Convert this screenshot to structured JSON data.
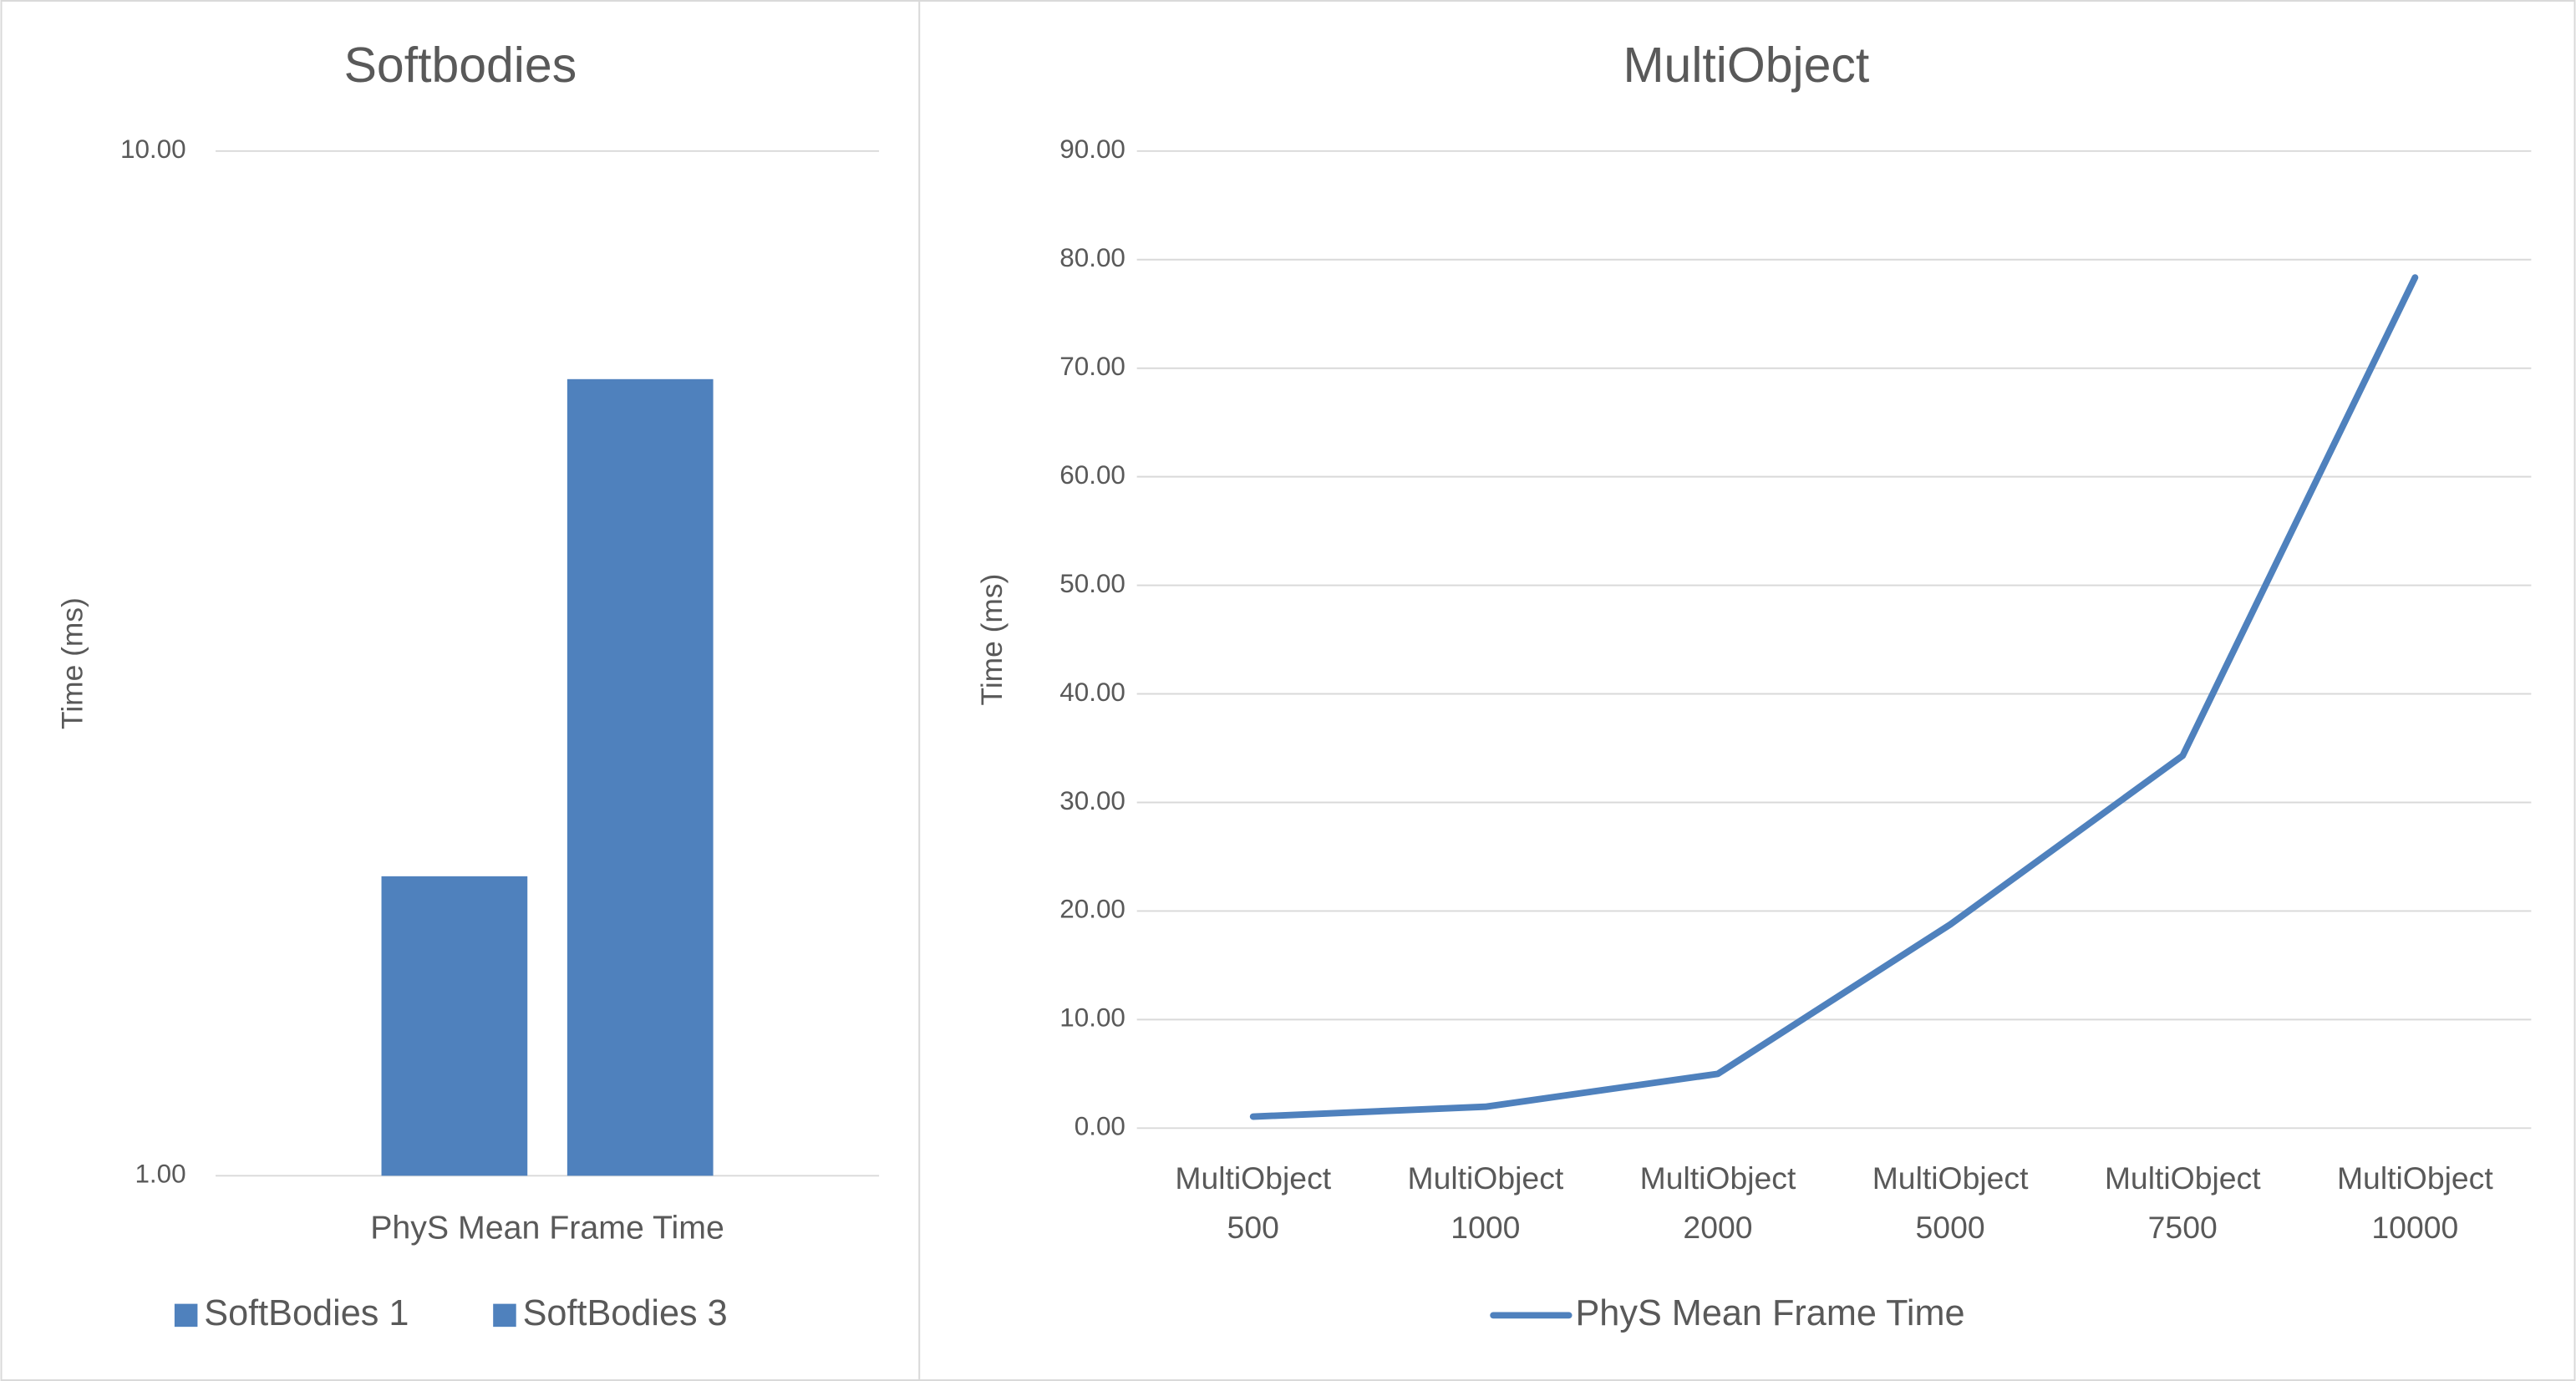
{
  "chart_data": [
    {
      "type": "bar",
      "title": "Softbodies",
      "ylabel": "Time (ms)",
      "log_scale": true,
      "categories": [
        "PhyS Mean Frame Time"
      ],
      "series": [
        {
          "name": "SoftBodies 1",
          "color": "#4f81bd",
          "values": [
            1.96
          ]
        },
        {
          "name": "SoftBodies 3",
          "color": "#4f81bd",
          "values": [
            5.99
          ]
        }
      ],
      "ylim": [
        1,
        10
      ],
      "yticks": [
        {
          "value": 1,
          "label": "1.00"
        },
        {
          "value": 10,
          "label": "10.00"
        }
      ],
      "grid": true,
      "legend": "bottom"
    },
    {
      "type": "line",
      "title": "MultiObject",
      "ylabel": "Time (ms)",
      "categories": [
        "MultiObject 500",
        "MultiObject 1000",
        "MultiObject 2000",
        "MultiObject 5000",
        "MultiObject 7500",
        "MultiObject 10000"
      ],
      "series": [
        {
          "name": "PhyS Mean Frame Time",
          "color": "#4f81bd",
          "values": [
            1.06,
            1.97,
            5.0,
            18.76,
            34.3,
            78.35
          ]
        }
      ],
      "ylim": [
        0,
        90
      ],
      "yticks": [
        {
          "value": 0,
          "label": "0.00"
        },
        {
          "value": 10,
          "label": "10.00"
        },
        {
          "value": 20,
          "label": "20.00"
        },
        {
          "value": 30,
          "label": "30.00"
        },
        {
          "value": 40,
          "label": "40.00"
        },
        {
          "value": 50,
          "label": "50.00"
        },
        {
          "value": 60,
          "label": "60.00"
        },
        {
          "value": 70,
          "label": "70.00"
        },
        {
          "value": 80,
          "label": "80.00"
        },
        {
          "value": 90,
          "label": "90.00"
        }
      ],
      "grid": true,
      "legend": "bottom"
    }
  ]
}
